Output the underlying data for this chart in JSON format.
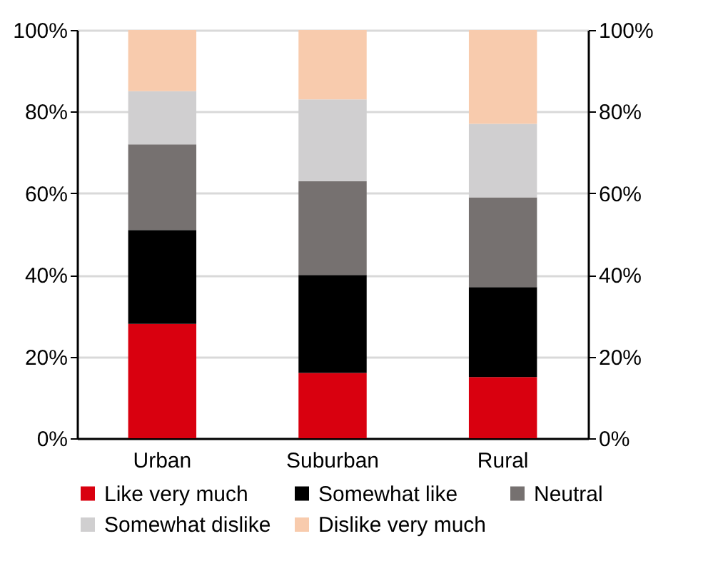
{
  "chart_data": {
    "type": "bar",
    "stacked": true,
    "categories": [
      "Urban",
      "Suburban",
      "Rural"
    ],
    "series": [
      {
        "name": "Like very  much",
        "color": "#d9000f",
        "values": [
          28,
          16,
          15
        ]
      },
      {
        "name": "Somewhat like",
        "color": "#000000",
        "values": [
          23,
          24,
          22
        ]
      },
      {
        "name": "Neutral",
        "color": "#767170",
        "values": [
          21,
          23,
          22
        ]
      },
      {
        "name": "Somewhat dislike",
        "color": "#d0cfd0",
        "values": [
          13,
          20,
          18
        ]
      },
      {
        "name": "Dislike very much",
        "color": "#f8cbad",
        "values": [
          15,
          17,
          23
        ]
      }
    ],
    "ylim": [
      0,
      100
    ],
    "yticks": [
      {
        "value": 0,
        "label": "0%"
      },
      {
        "value": 20,
        "label": "20%"
      },
      {
        "value": 40,
        "label": "40%"
      },
      {
        "value": 60,
        "label": "60%"
      },
      {
        "value": 80,
        "label": "80%"
      },
      {
        "value": 100,
        "label": "100%"
      }
    ],
    "y2lim": [
      0,
      100
    ],
    "y2ticks": [
      {
        "value": 0,
        "label": "0%"
      },
      {
        "value": 20,
        "label": "20%"
      },
      {
        "value": 40,
        "label": "40%"
      },
      {
        "value": 60,
        "label": "60%"
      },
      {
        "value": 80,
        "label": "80%"
      },
      {
        "value": 100,
        "label": "100%"
      }
    ],
    "grid": "y",
    "legend": "bottom"
  }
}
